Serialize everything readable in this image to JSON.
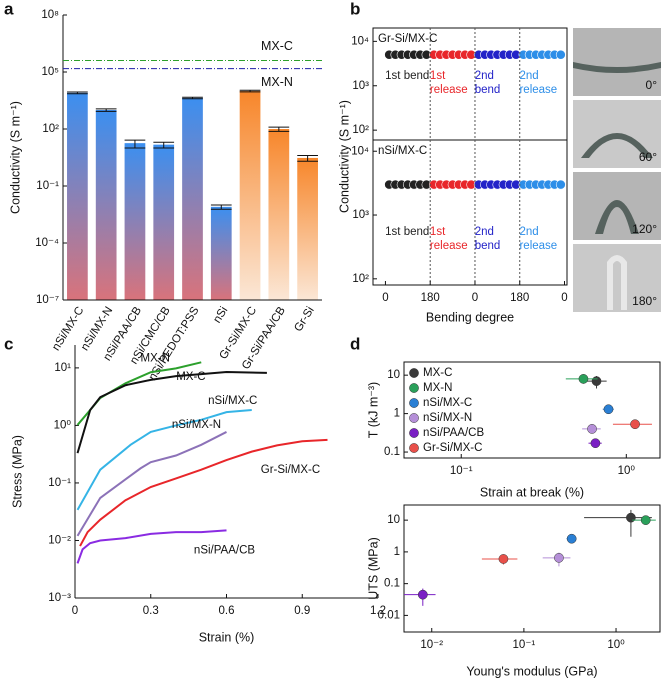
{
  "chart_data": [
    {
      "type": "bar",
      "panel_label": "a",
      "y_label": "Conductivity (S m⁻¹)",
      "log_y": true,
      "categories": [
        "nSi/MX-C",
        "nSi/MX-N",
        "nSi/PAA/CB",
        "nSi/CMC/CB",
        "nSi/PEDOT:PSS",
        "nSi",
        "Gr-Si/MX-C",
        "Gr-Si/PAA/CB",
        "Gr-Si"
      ],
      "values": [
        8000,
        1000,
        18,
        15,
        4300,
        0.008,
        10000,
        100,
        3
      ],
      "errors": [
        800,
        150,
        8,
        5,
        400,
        0.002,
        1000,
        25,
        1
      ],
      "colors": [
        "#3b8ff0",
        "#3b8ff0",
        "#3b8ff0",
        "#3b8ff0",
        "#3b8ff0",
        "#3b8ff0",
        "#f7862a",
        "#f7862a",
        "#f7862a"
      ],
      "bottom_colors": [
        "#d9737b",
        "#d9737b",
        "#d9737b",
        "#d9737b",
        "#d9737b",
        "#d9737b",
        "#fbe7d6",
        "#fbe7d6",
        "#fbe7d6"
      ],
      "ylim": [
        1e-07,
        100000000.0
      ],
      "yticks": [
        {
          "value": 1e-07,
          "label": "10⁻⁷"
        },
        {
          "value": 0.0001,
          "label": "10⁻⁴"
        },
        {
          "value": 0.1,
          "label": "10⁻¹"
        },
        {
          "value": 100,
          "label": "10²"
        },
        {
          "value": 100000,
          "label": "10⁵"
        },
        {
          "value": 100000000,
          "label": "10⁸"
        }
      ],
      "reference_lines": [
        {
          "label": "MX-C",
          "value": 400000,
          "color": "#2ca02c"
        },
        {
          "label": "MX-N",
          "value": 150000,
          "color": "#1f1fa8"
        }
      ]
    },
    {
      "type": "scatter",
      "panel_label": "b",
      "y_label": "Conductivity (S m⁻¹)",
      "x_label": "Bending degree",
      "xlim": [
        -50,
        730
      ],
      "xticks": [
        0,
        180,
        {
          "value": 360,
          "label": "0"
        },
        {
          "value": 540,
          "label": "180"
        },
        {
          "value": 720,
          "label": "0"
        }
      ],
      "panels": [
        {
          "title": "Gr-Si/MX-C",
          "log_y": true,
          "ylim": [
            60,
            20000
          ],
          "yticks": [
            {
              "value": 100,
              "label": "10²"
            },
            {
              "value": 1000,
              "label": "10³"
            },
            {
              "value": 10000,
              "label": "10⁴"
            }
          ],
          "series": [
            {
              "name": "1st bend",
              "color": "#222222",
              "x": [
                15,
                40,
                65,
                90,
                115,
                140,
                165
              ],
              "values": [
                5000,
                5000,
                5000,
                5000,
                5000,
                5000,
                5000
              ]
            },
            {
              "name": "1st release",
              "color": "#e8262a",
              "x": [
                195,
                220,
                245,
                270,
                295,
                320,
                345
              ],
              "values": [
                5000,
                5000,
                5000,
                5000,
                5000,
                5000,
                5000
              ]
            },
            {
              "name": "2nd bend",
              "color": "#2323c8",
              "x": [
                375,
                400,
                425,
                450,
                475,
                500,
                525
              ],
              "values": [
                5000,
                5000,
                5000,
                5000,
                5000,
                5000,
                5000
              ]
            },
            {
              "name": "2nd release",
              "color": "#2d8ee8",
              "x": [
                555,
                580,
                605,
                630,
                655,
                680,
                705
              ],
              "values": [
                5000,
                5000,
                5000,
                5000,
                5000,
                5000,
                5000
              ]
            }
          ]
        },
        {
          "title": "nSi/MX-C",
          "log_y": true,
          "ylim": [
            80,
            15000
          ],
          "yticks": [
            {
              "value": 100,
              "label": "10²"
            },
            {
              "value": 1000,
              "label": "10³"
            },
            {
              "value": 10000,
              "label": "10⁴"
            }
          ],
          "series": [
            {
              "name": "1st bend",
              "color": "#222222",
              "x": [
                15,
                40,
                65,
                90,
                115,
                140,
                165
              ],
              "values": [
                3000,
                3000,
                3000,
                3000,
                3000,
                3000,
                3000
              ]
            },
            {
              "name": "1st release",
              "color": "#e8262a",
              "x": [
                195,
                220,
                245,
                270,
                295,
                320,
                345
              ],
              "values": [
                3000,
                3000,
                3000,
                3000,
                3000,
                3000,
                3000
              ]
            },
            {
              "name": "2nd bend",
              "color": "#2323c8",
              "x": [
                375,
                400,
                425,
                450,
                475,
                500,
                525
              ],
              "values": [
                3000,
                3000,
                3000,
                3000,
                3000,
                3000,
                3000
              ]
            },
            {
              "name": "2nd release",
              "color": "#2d8ee8",
              "x": [
                555,
                580,
                605,
                630,
                655,
                680,
                705
              ],
              "values": [
                3000,
                3000,
                3000,
                3000,
                3000,
                3000,
                3000
              ]
            }
          ]
        }
      ],
      "photo_labels": [
        "0°",
        "60°",
        "120°",
        "180°"
      ]
    },
    {
      "type": "line",
      "panel_label": "c",
      "y_label": "Stress (MPa)",
      "x_label": "Strain (%)",
      "log_y": true,
      "xlim": [
        0,
        1.2
      ],
      "xticks": [
        0,
        0.3,
        0.6,
        0.9,
        1.2
      ],
      "ylim": [
        0.001,
        25
      ],
      "yticks": [
        {
          "value": 0.001,
          "label": "10⁻³"
        },
        {
          "value": 0.01,
          "label": "10⁻²"
        },
        {
          "value": 0.1,
          "label": "10⁻¹"
        },
        {
          "value": 1,
          "label": "10⁰"
        },
        {
          "value": 10,
          "label": "10¹"
        }
      ],
      "series": [
        {
          "name": "MX-N",
          "color": "#2ca02c",
          "x": [
            0.01,
            0.06,
            0.1,
            0.2,
            0.3,
            0.4,
            0.5
          ],
          "values": [
            1.02,
            1.85,
            3.0,
            5.4,
            8.4,
            9.8,
            12.5
          ]
        },
        {
          "name": "MX-C",
          "color": "#111111",
          "x": [
            0.01,
            0.06,
            0.1,
            0.2,
            0.3,
            0.4,
            0.5,
            0.6,
            0.76
          ],
          "values": [
            0.33,
            1.85,
            3.1,
            5.0,
            6.2,
            7.2,
            7.8,
            8.5,
            8.2
          ]
        },
        {
          "name": "nSi/MX-C",
          "color": "#35b4e6",
          "x": [
            0.01,
            0.1,
            0.22,
            0.3,
            0.4,
            0.5,
            0.6,
            0.7
          ],
          "values": [
            0.034,
            0.17,
            0.46,
            0.77,
            1.0,
            1.25,
            1.7,
            1.85
          ]
        },
        {
          "name": "nSi/MX-N",
          "color": "#8c72b8",
          "x": [
            0.01,
            0.1,
            0.26,
            0.3,
            0.4,
            0.5,
            0.6
          ],
          "values": [
            0.012,
            0.055,
            0.18,
            0.23,
            0.3,
            0.46,
            0.77
          ]
        },
        {
          "name": "Gr-Si/MX-C",
          "color": "#e8262a",
          "x": [
            0.02,
            0.05,
            0.1,
            0.2,
            0.3,
            0.4,
            0.5,
            0.6,
            0.7,
            0.8,
            0.9,
            1.0
          ],
          "values": [
            0.008,
            0.014,
            0.023,
            0.05,
            0.085,
            0.12,
            0.17,
            0.25,
            0.35,
            0.45,
            0.53,
            0.56
          ]
        },
        {
          "name": "nSi/PAA/CB",
          "color": "#8a2be2",
          "x": [
            0.01,
            0.03,
            0.06,
            0.1,
            0.2,
            0.3,
            0.4,
            0.5,
            0.6
          ],
          "values": [
            0.004,
            0.007,
            0.009,
            0.01,
            0.011,
            0.013,
            0.014,
            0.014,
            0.015
          ]
        }
      ]
    },
    {
      "type": "scatter",
      "panel_label": "d",
      "y_label": "T (kJ m⁻³)",
      "x_label": "Strain at break (%)",
      "log_x": true,
      "log_y": true,
      "xlim": [
        0.045,
        1.6
      ],
      "xticks": [
        {
          "value": 0.1,
          "label": "10⁻¹"
        },
        {
          "value": 1,
          "label": "10⁰"
        }
      ],
      "ylim": [
        0.07,
        22
      ],
      "yticks": [
        0.1,
        1,
        10
      ],
      "series": [
        {
          "name": "MX-C",
          "color": "#3a3a3a",
          "x": [
            0.66
          ],
          "values": [
            7
          ],
          "xerr": [
            0.1
          ],
          "yerr": [
            2.5
          ]
        },
        {
          "name": "MX-N",
          "color": "#2aa05a",
          "x": [
            0.55
          ],
          "values": [
            8
          ],
          "xerr": [
            0.12
          ],
          "yerr": [
            2
          ]
        },
        {
          "name": "nSi/MX-C",
          "color": "#2a7fd4",
          "x": [
            0.78
          ],
          "values": [
            1.3
          ],
          "xerr": [
            0.06
          ],
          "yerr": [
            0.3
          ]
        },
        {
          "name": "nSi/MX-N",
          "color": "#b58fd8",
          "x": [
            0.62
          ],
          "values": [
            0.4
          ],
          "xerr": [
            0.08
          ],
          "yerr": [
            0.08
          ]
        },
        {
          "name": "nSi/PAA/CB",
          "color": "#7a1fc4",
          "x": [
            0.65
          ],
          "values": [
            0.17
          ],
          "xerr": [
            0.06
          ],
          "yerr": [
            0.03
          ]
        },
        {
          "name": "Gr-Si/MX-C",
          "color": "#e8504a",
          "x": [
            1.13
          ],
          "values": [
            0.53
          ],
          "xerr": [
            0.3
          ],
          "yerr": [
            0.1
          ]
        }
      ]
    },
    {
      "type": "scatter",
      "y_label": "UTS (MPa)",
      "x_label": "Young's modulus (GPa)",
      "log_x": true,
      "log_y": true,
      "xlim": [
        0.005,
        3
      ],
      "xticks": [
        {
          "value": 0.01,
          "label": "10⁻²"
        },
        {
          "value": 0.1,
          "label": "10⁻¹"
        },
        {
          "value": 1,
          "label": "10⁰"
        }
      ],
      "ylim": [
        0.003,
        30
      ],
      "yticks": [
        0.01,
        0.1,
        1,
        10
      ],
      "series": [
        {
          "color": "#3a3a3a",
          "x": [
            1.45
          ],
          "values": [
            12
          ],
          "xerr": [
            1.0
          ],
          "yerr": [
            9
          ]
        },
        {
          "color": "#2aa05a",
          "x": [
            2.1
          ],
          "values": [
            10
          ],
          "xerr": [
            0.6
          ],
          "yerr": [
            2
          ]
        },
        {
          "color": "#2a7fd4",
          "x": [
            0.33
          ],
          "values": [
            2.6
          ],
          "xerr": [
            0.04
          ],
          "yerr": [
            0.6
          ]
        },
        {
          "color": "#b58fd8",
          "x": [
            0.24
          ],
          "values": [
            0.65
          ],
          "xerr": [
            0.08
          ],
          "yerr": [
            0.3
          ]
        },
        {
          "color": "#7a1fc4",
          "x": [
            0.008
          ],
          "values": [
            0.045
          ],
          "xerr": [
            0.003
          ],
          "yerr": [
            0.025
          ]
        },
        {
          "color": "#e8504a",
          "x": [
            0.06
          ],
          "values": [
            0.6
          ],
          "xerr": [
            0.025
          ],
          "yerr": [
            0.2
          ]
        }
      ]
    }
  ]
}
